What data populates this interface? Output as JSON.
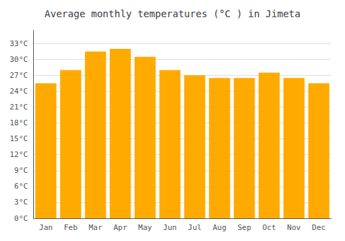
{
  "chart_data": {
    "type": "bar",
    "title": "Average monthly temperatures (°C ) in Jimeta",
    "categories": [
      "Jan",
      "Feb",
      "Mar",
      "Apr",
      "May",
      "Jun",
      "Jul",
      "Aug",
      "Sep",
      "Oct",
      "Nov",
      "Dec"
    ],
    "values": [
      25.5,
      28.0,
      31.5,
      32.0,
      30.5,
      28.0,
      27.0,
      26.5,
      26.5,
      27.5,
      26.5,
      25.5
    ],
    "color": "#FFAA00",
    "ylim": [
      0,
      35.5
    ],
    "yticks": [
      {
        "value": 0,
        "label": "0°C"
      },
      {
        "value": 3,
        "label": "3°C"
      },
      {
        "value": 6,
        "label": "6°C"
      },
      {
        "value": 9,
        "label": "9°C"
      },
      {
        "value": 12,
        "label": "12°C"
      },
      {
        "value": 15,
        "label": "15°C"
      },
      {
        "value": 18,
        "label": "18°C"
      },
      {
        "value": 21,
        "label": "21°C"
      },
      {
        "value": 24,
        "label": "24°C"
      },
      {
        "value": 27,
        "label": "27°C"
      },
      {
        "value": 30,
        "label": "30°C"
      },
      {
        "value": 33,
        "label": "33°C"
      }
    ],
    "grid": true
  }
}
